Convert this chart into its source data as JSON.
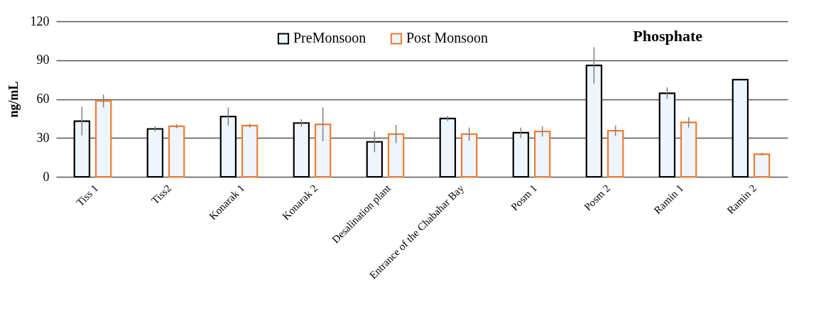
{
  "chart_data": {
    "type": "bar",
    "title": "Phosphate",
    "ylabel": "ng/mL",
    "categories": [
      "Tiss 1",
      "Tiss2",
      "Konarak 1",
      "Konarak 2",
      "Desalination plant",
      "Entrance of the Chabahar Bay",
      "Posm 1",
      "Posm 2",
      "Ramin 1",
      "Ramin 2"
    ],
    "series": [
      {
        "name": "PreMonsoon",
        "color": "#000000",
        "values": [
          43,
          37,
          46.5,
          41.5,
          27,
          45,
          34,
          86,
          64.5,
          75
        ],
        "errors": [
          11,
          2,
          7,
          3,
          8,
          2,
          4,
          14,
          4.5,
          null
        ]
      },
      {
        "name": "Post Monsoon",
        "color": "#ed7d31",
        "values": [
          58.5,
          39,
          39.5,
          40.5,
          33,
          33,
          35,
          35.5,
          42,
          17.5
        ],
        "errors": [
          5,
          1.5,
          1.5,
          13,
          7,
          5,
          4,
          4,
          4,
          1
        ]
      }
    ],
    "ylim": [
      0,
      120
    ],
    "yticks": [
      0,
      30,
      60,
      90,
      120
    ],
    "grid": "y",
    "legend": "top"
  }
}
